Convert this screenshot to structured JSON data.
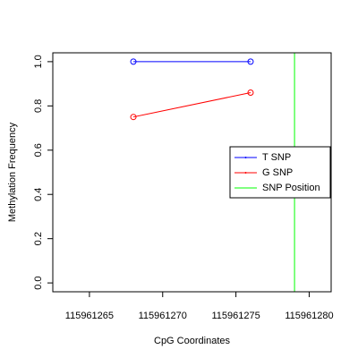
{
  "chart_data": {
    "type": "line",
    "title": "",
    "xlabel": "CpG Coordinates",
    "ylabel": "Methylation Frequency",
    "xlim": [
      115961262.5,
      115961281.5
    ],
    "ylim": [
      -0.04,
      1.04
    ],
    "x_ticks": [
      115961265,
      115961270,
      115961275,
      115961280
    ],
    "y_ticks": [
      0.0,
      0.2,
      0.4,
      0.6,
      0.8,
      1.0
    ],
    "y_tick_labels": [
      "0.0",
      "0.2",
      "0.4",
      "0.6",
      "0.8",
      "1.0"
    ],
    "grid": false,
    "legend_position": "right",
    "series": [
      {
        "name": "T SNP",
        "color": "#0000ff",
        "x": [
          115961268,
          115961276
        ],
        "y": [
          1.0,
          1.0
        ]
      },
      {
        "name": "G SNP",
        "color": "#ff0000",
        "x": [
          115961268,
          115961276
        ],
        "y": [
          0.75,
          0.86
        ]
      }
    ],
    "vlines": [
      {
        "name": "SNP Position",
        "color": "#00ff00",
        "x": 115961279
      }
    ]
  }
}
